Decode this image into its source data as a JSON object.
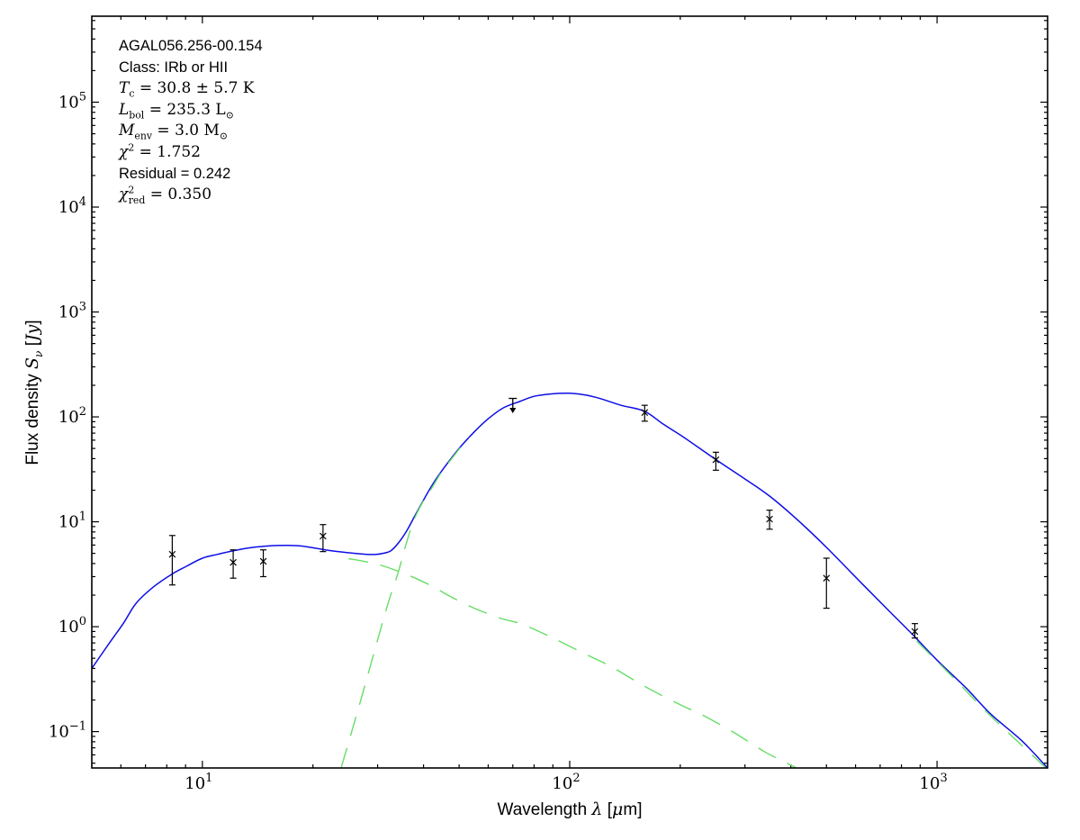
{
  "figure": {
    "background": "#ffffff",
    "frame_color": "#000000",
    "annotation": {
      "lines": [
        {
          "font": "sans",
          "segments": [
            {
              "text": "AGAL056.256-00.154"
            }
          ]
        },
        {
          "font": "sans",
          "segments": [
            {
              "text": "Class: IRb or HII"
            }
          ]
        },
        {
          "font": "serif",
          "segments": [
            {
              "text": "T",
              "style": "italic"
            },
            {
              "text": "c",
              "style": "sub"
            },
            {
              "text": " = 30.8 ± 5.7 K"
            }
          ]
        },
        {
          "font": "serif",
          "segments": [
            {
              "text": "L",
              "style": "italic"
            },
            {
              "text": "bol",
              "style": "sub"
            },
            {
              "text": " = 235.3 L"
            },
            {
              "text": "⊙",
              "style": "sub"
            }
          ]
        },
        {
          "font": "serif",
          "segments": [
            {
              "text": "M",
              "style": "italic"
            },
            {
              "text": "env",
              "style": "sub"
            },
            {
              "text": " = 3.0 M"
            },
            {
              "text": "⊙",
              "style": "sub"
            }
          ]
        },
        {
          "font": "serif",
          "segments": [
            {
              "text": "χ",
              "style": "italic"
            },
            {
              "text": "2",
              "style": "sup"
            },
            {
              "text": " = 1.752"
            }
          ]
        },
        {
          "font": "sans",
          "segments": [
            {
              "text": "Residual = 0.242"
            }
          ]
        },
        {
          "font": "serif",
          "segments": [
            {
              "text": "χ",
              "style": "italic"
            },
            {
              "text": "2",
              "style": "sup"
            },
            {
              "text": "red",
              "style": "substack"
            },
            {
              "text": " = 0.350"
            }
          ]
        }
      ]
    }
  },
  "chart_data": {
    "type": "line",
    "title": "",
    "xscale": "log",
    "yscale": "log",
    "xlim": [
      5,
      2000
    ],
    "ylim": [
      0.045,
      660000
    ],
    "x_tick_exponents": [
      1,
      2,
      3
    ],
    "y_tick_exponents": [
      -1,
      0,
      1,
      2,
      3,
      4,
      5
    ],
    "xlabel_parts": [
      {
        "text": "Wavelength ",
        "font": "sans"
      },
      {
        "text": "λ",
        "font": "serif",
        "style": "italic"
      },
      {
        "text": " [",
        "font": "sans"
      },
      {
        "text": "μ",
        "font": "serif",
        "style": "italic"
      },
      {
        "text": "m]",
        "font": "sans"
      }
    ],
    "ylabel_parts": [
      {
        "text": "Flux density ",
        "font": "sans"
      },
      {
        "text": "S",
        "font": "serif",
        "style": "italic"
      },
      {
        "text": "ν",
        "font": "serif",
        "style": "subitalic"
      },
      {
        "text": " [",
        "font": "sans"
      },
      {
        "text": "Jy",
        "font": "serif",
        "style": "italic"
      },
      {
        "text": "]",
        "font": "sans"
      }
    ],
    "series": [
      {
        "name": "total-fit",
        "color": "#0d0de8",
        "style": "solid",
        "width": 1.5,
        "points": [
          [
            5,
            0.4
          ],
          [
            5.6,
            0.71
          ],
          [
            6.1,
            1.08
          ],
          [
            6.6,
            1.67
          ],
          [
            7.4,
            2.43
          ],
          [
            8.3,
            3.2
          ],
          [
            9.1,
            3.8
          ],
          [
            10,
            4.5
          ],
          [
            11,
            4.9
          ],
          [
            12,
            5.25
          ],
          [
            13.5,
            5.65
          ],
          [
            15.3,
            5.9
          ],
          [
            17,
            5.95
          ],
          [
            18.5,
            5.88
          ],
          [
            20,
            5.65
          ],
          [
            22,
            5.35
          ],
          [
            24,
            5.15
          ],
          [
            26,
            5.0
          ],
          [
            28,
            4.9
          ],
          [
            29.5,
            4.88
          ],
          [
            31,
            5.0
          ],
          [
            32.6,
            5.3
          ],
          [
            34.2,
            6.3
          ],
          [
            36,
            8.2
          ],
          [
            38.2,
            12
          ],
          [
            41.9,
            21.4
          ],
          [
            45.4,
            32.4
          ],
          [
            50,
            50
          ],
          [
            55,
            72
          ],
          [
            60,
            96
          ],
          [
            66,
            122
          ],
          [
            73,
            140
          ],
          [
            80,
            157
          ],
          [
            90,
            166
          ],
          [
            100,
            168
          ],
          [
            110,
            162
          ],
          [
            120,
            151
          ],
          [
            138,
            129
          ],
          [
            160,
            113
          ],
          [
            180,
            85
          ],
          [
            205,
            63.5
          ],
          [
            249,
            39.5
          ],
          [
            300,
            25.6
          ],
          [
            350,
            17.6
          ],
          [
            420,
            10.2
          ],
          [
            500,
            5.7
          ],
          [
            630,
            2.5
          ],
          [
            750,
            1.35
          ],
          [
            870,
            0.8
          ],
          [
            1000,
            0.48
          ],
          [
            1200,
            0.26
          ],
          [
            1400,
            0.147
          ],
          [
            1700,
            0.082
          ],
          [
            2000,
            0.045
          ]
        ]
      },
      {
        "name": "warm-component",
        "color": "#66dd66",
        "style": "dashed",
        "width": 1.4,
        "points": [
          [
            25,
            4.45
          ],
          [
            28,
            4.15
          ],
          [
            31,
            3.8
          ],
          [
            34.2,
            3.37
          ],
          [
            38,
            2.9
          ],
          [
            43,
            2.35
          ],
          [
            47.2,
            1.95
          ],
          [
            55,
            1.5
          ],
          [
            65,
            1.2
          ],
          [
            74,
            1.06
          ],
          [
            90,
            0.78
          ],
          [
            110,
            0.55
          ],
          [
            130,
            0.414
          ],
          [
            160,
            0.27
          ],
          [
            200,
            0.18
          ],
          [
            229,
            0.145
          ],
          [
            280,
            0.098
          ],
          [
            340,
            0.064
          ],
          [
            415,
            0.045
          ]
        ]
      },
      {
        "name": "cold-component-rise",
        "color": "#66dd66",
        "style": "dashed",
        "width": 1.4,
        "points": [
          [
            23.9,
            0.046
          ],
          [
            25.5,
            0.1
          ],
          [
            27.1,
            0.21
          ],
          [
            29,
            0.49
          ],
          [
            30.7,
            1.0
          ],
          [
            32.2,
            1.77
          ],
          [
            34.2,
            3.37
          ],
          [
            35.8,
            6.0
          ],
          [
            37.7,
            10.5
          ],
          [
            39.9,
            15.6
          ],
          [
            41.7,
            19.8
          ],
          [
            44.8,
            29.9
          ],
          [
            47.2,
            38
          ],
          [
            50.2,
            50
          ],
          [
            53.3,
            63.5
          ]
        ]
      },
      {
        "name": "cold-component-tail",
        "color": "#66dd66",
        "style": "dashed",
        "width": 1.4,
        "points": [
          [
            880,
            0.73
          ],
          [
            1100,
            0.335
          ],
          [
            1400,
            0.141
          ],
          [
            2000,
            0.0435
          ]
        ]
      }
    ],
    "data_points": {
      "marker": "x",
      "color": "#000000",
      "points": [
        {
          "wavelength": 8.28,
          "flux": 4.9,
          "flux_lo": 2.5,
          "flux_hi": 7.4
        },
        {
          "wavelength": 12.13,
          "flux": 4.1,
          "flux_lo": 2.9,
          "flux_hi": 5.4
        },
        {
          "wavelength": 14.65,
          "flux": 4.2,
          "flux_lo": 3.0,
          "flux_hi": 5.4
        },
        {
          "wavelength": 21.3,
          "flux": 7.3,
          "flux_lo": 5.2,
          "flux_hi": 9.4
        },
        {
          "wavelength": 160,
          "flux": 110,
          "flux_lo": 91,
          "flux_hi": 129
        },
        {
          "wavelength": 250,
          "flux": 39,
          "flux_lo": 31,
          "flux_hi": 46
        },
        {
          "wavelength": 350,
          "flux": 10.6,
          "flux_lo": 8.5,
          "flux_hi": 12.9
        },
        {
          "wavelength": 500,
          "flux": 2.9,
          "flux_lo": 1.5,
          "flux_hi": 4.5
        },
        {
          "wavelength": 870,
          "flux": 0.9,
          "flux_lo": 0.78,
          "flux_hi": 1.07
        }
      ]
    },
    "upper_limit": {
      "wavelength": 70,
      "flux": 150,
      "arrow_to": 122,
      "color": "#000000"
    }
  }
}
